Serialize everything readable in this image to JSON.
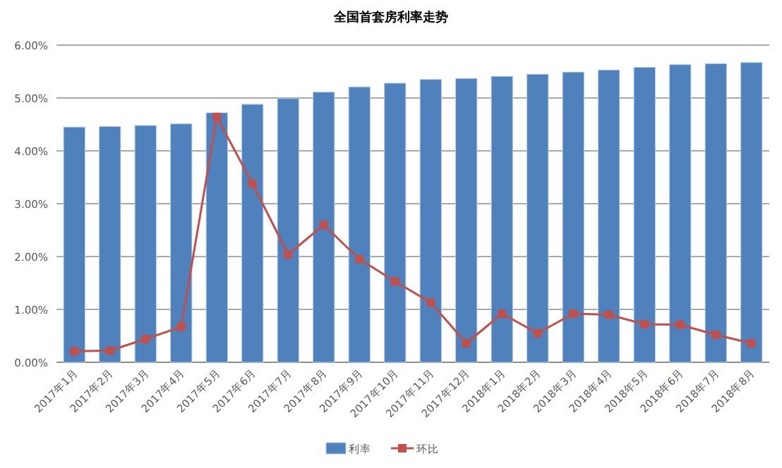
{
  "chart_data": {
    "type": "bar",
    "title": "全国首套房利率走势",
    "categories": [
      "2017年1月",
      "2017年2月",
      "2017年3月",
      "2017年4月",
      "2017年5月",
      "2017年6月",
      "2017年7月",
      "2017年8月",
      "2017年9月",
      "2017年10月",
      "2017年11月",
      "2017年12月",
      "2018年1月",
      "2018年2月",
      "2018年3月",
      "2018年4月",
      "2018年5月",
      "2018年6月",
      "2018年7月",
      "2018年8月"
    ],
    "series": [
      {
        "name": "利率",
        "color": "#4f81bd",
        "values": [
          4.45,
          4.46,
          4.48,
          4.51,
          4.72,
          4.88,
          4.99,
          5.11,
          5.21,
          5.28,
          5.35,
          5.37,
          5.41,
          5.45,
          5.49,
          5.53,
          5.58,
          5.63,
          5.65,
          5.67
        ]
      },
      {
        "name": "环比",
        "type": "line",
        "color": "#c0504d",
        "marker": "square",
        "values": [
          0.21,
          0.22,
          0.44,
          0.67,
          4.64,
          3.38,
          2.04,
          2.6,
          1.95,
          1.53,
          1.13,
          0.36,
          0.92,
          0.55,
          0.92,
          0.9,
          0.72,
          0.71,
          0.52,
          0.36
        ]
      }
    ],
    "ylim": [
      0,
      6
    ],
    "yticks": [
      {
        "value": 0,
        "label": "0.00%"
      },
      {
        "value": 1,
        "label": "1.00%"
      },
      {
        "value": 2,
        "label": "2.00%"
      },
      {
        "value": 3,
        "label": "3.00%"
      },
      {
        "value": 4,
        "label": "4.00%"
      },
      {
        "value": 5,
        "label": "5.00%"
      },
      {
        "value": 6,
        "label": "6.00%"
      }
    ],
    "grid": "y",
    "legend": "bottom"
  }
}
